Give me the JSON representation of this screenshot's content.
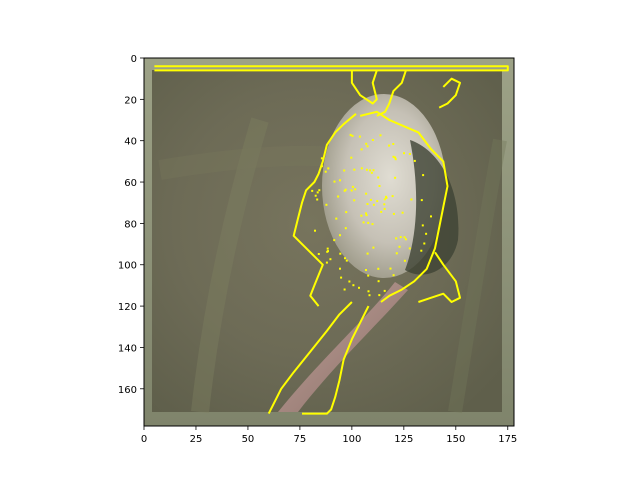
{
  "chart_data": {
    "type": "image",
    "title": "",
    "xlabel": "",
    "ylabel": "",
    "xlim": [
      0,
      178
    ],
    "ylim": [
      178,
      0
    ],
    "x_ticks": [
      0,
      25,
      50,
      75,
      100,
      125,
      150,
      175
    ],
    "y_ticks": [
      0,
      20,
      40,
      60,
      80,
      100,
      120,
      140,
      160
    ],
    "x_tick_labels": [
      "0",
      "25",
      "50",
      "75",
      "100",
      "125",
      "150",
      "175"
    ],
    "y_tick_labels": [
      "0",
      "20",
      "40",
      "60",
      "80",
      "100",
      "120",
      "140",
      "160"
    ],
    "image_description_colors": {
      "background": "#6c6a55",
      "frame": "#8e9274",
      "flower": "#c9c7bf",
      "stem": "#a88a86",
      "edge_overlay": "#ffff00"
    },
    "edge_overlay_paths": [
      {
        "name": "top-bar",
        "points": [
          [
            5,
            4
          ],
          [
            175,
            4
          ],
          [
            175,
            6
          ],
          [
            5,
            6
          ]
        ]
      },
      {
        "name": "flower-left-outline",
        "points": [
          [
            102,
            27
          ],
          [
            96,
            32
          ],
          [
            92,
            36
          ],
          [
            88,
            42
          ],
          [
            86,
            50
          ],
          [
            84,
            56
          ],
          [
            82,
            60
          ],
          [
            78,
            64
          ],
          [
            76,
            70
          ],
          [
            74,
            78
          ],
          [
            72,
            86
          ],
          [
            86,
            100
          ],
          [
            82,
            110
          ],
          [
            80,
            115
          ],
          [
            84,
            120
          ]
        ]
      },
      {
        "name": "flower-right-outline",
        "points": [
          [
            104,
            28
          ],
          [
            112,
            26
          ],
          [
            118,
            30
          ],
          [
            125,
            33
          ],
          [
            132,
            36
          ],
          [
            138,
            44
          ],
          [
            144,
            50
          ],
          [
            146,
            62
          ],
          [
            144,
            72
          ],
          [
            142,
            82
          ],
          [
            140,
            92
          ],
          [
            136,
            102
          ],
          [
            130,
            108
          ],
          [
            124,
            112
          ],
          [
            118,
            115
          ],
          [
            114,
            118
          ]
        ]
      },
      {
        "name": "stem-left",
        "points": [
          [
            100,
            118
          ],
          [
            94,
            124
          ],
          [
            88,
            132
          ],
          [
            80,
            142
          ],
          [
            72,
            152
          ],
          [
            66,
            160
          ],
          [
            62,
            168
          ],
          [
            60,
            172
          ]
        ]
      },
      {
        "name": "stem-right",
        "points": [
          [
            108,
            120
          ],
          [
            104,
            128
          ],
          [
            100,
            136
          ],
          [
            96,
            146
          ],
          [
            94,
            156
          ],
          [
            92,
            164
          ],
          [
            90,
            170
          ],
          [
            88,
            172
          ],
          [
            76,
            172
          ]
        ]
      },
      {
        "name": "top-grass-left",
        "points": [
          [
            100,
            6
          ],
          [
            100,
            12
          ],
          [
            104,
            18
          ],
          [
            110,
            22
          ],
          [
            112,
            20
          ],
          [
            110,
            12
          ],
          [
            112,
            6
          ]
        ]
      },
      {
        "name": "top-grass-right",
        "points": [
          [
            126,
            6
          ],
          [
            124,
            12
          ],
          [
            120,
            16
          ],
          [
            118,
            22
          ],
          [
            116,
            26
          ],
          [
            112,
            28
          ]
        ]
      },
      {
        "name": "right-fleck",
        "points": [
          [
            144,
            14
          ],
          [
            148,
            10
          ],
          [
            152,
            12
          ],
          [
            150,
            18
          ],
          [
            146,
            22
          ],
          [
            142,
            24
          ]
        ]
      },
      {
        "name": "lower-right-fleck",
        "points": [
          [
            140,
            94
          ],
          [
            144,
            100
          ],
          [
            150,
            108
          ],
          [
            152,
            116
          ],
          [
            148,
            118
          ],
          [
            144,
            114
          ],
          [
            138,
            116
          ],
          [
            132,
            118
          ]
        ]
      }
    ]
  }
}
